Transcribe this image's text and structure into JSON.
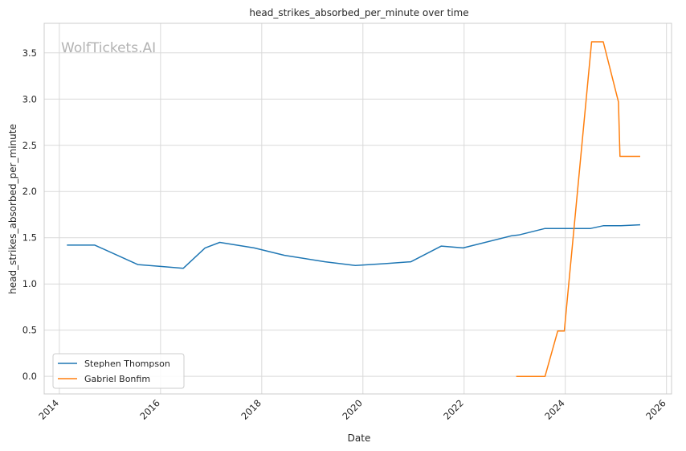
{
  "chart_data": {
    "type": "line",
    "title": "head_strikes_absorbed_per_minute over time",
    "xlabel": "Date",
    "ylabel": "head_strikes_absorbed_per_minute",
    "watermark": "WolfTickets.AI",
    "xlim": [
      2013.7,
      2026.1
    ],
    "ylim": [
      -0.19,
      3.82
    ],
    "x_ticks": [
      2014,
      2016,
      2018,
      2020,
      2022,
      2024,
      2026
    ],
    "x_tick_labels": [
      "2014",
      "2016",
      "2018",
      "2020",
      "2022",
      "2024",
      "2026"
    ],
    "y_ticks": [
      0.0,
      0.5,
      1.0,
      1.5,
      2.0,
      2.5,
      3.0,
      3.5
    ],
    "y_tick_labels": [
      "0.0",
      "0.5",
      "1.0",
      "1.5",
      "2.0",
      "2.5",
      "3.0",
      "3.5"
    ],
    "grid": true,
    "legend_position": "lower-left",
    "series": [
      {
        "name": "Stephen Thompson",
        "color": "#1f77b4",
        "x": [
          2014.15,
          2014.7,
          2015.55,
          2016.0,
          2016.45,
          2016.88,
          2017.17,
          2017.85,
          2018.45,
          2019.25,
          2019.85,
          2020.45,
          2020.95,
          2021.55,
          2021.98,
          2022.93,
          2023.08,
          2023.6,
          2024.0,
          2024.5,
          2024.75,
          2025.1,
          2025.48
        ],
        "y": [
          1.42,
          1.42,
          1.21,
          1.19,
          1.17,
          1.39,
          1.45,
          1.39,
          1.31,
          1.24,
          1.2,
          1.22,
          1.24,
          1.41,
          1.39,
          1.52,
          1.53,
          1.6,
          1.6,
          1.6,
          1.63,
          1.63,
          1.64
        ]
      },
      {
        "name": "Gabriel Bonfim",
        "color": "#ff7f0e",
        "x": [
          2023.03,
          2023.6,
          2023.85,
          2023.98,
          2024.52,
          2024.75,
          2025.05,
          2025.08,
          2025.48
        ],
        "y": [
          0.0,
          0.0,
          0.49,
          0.49,
          3.62,
          3.62,
          2.97,
          2.38,
          2.38
        ]
      }
    ]
  }
}
